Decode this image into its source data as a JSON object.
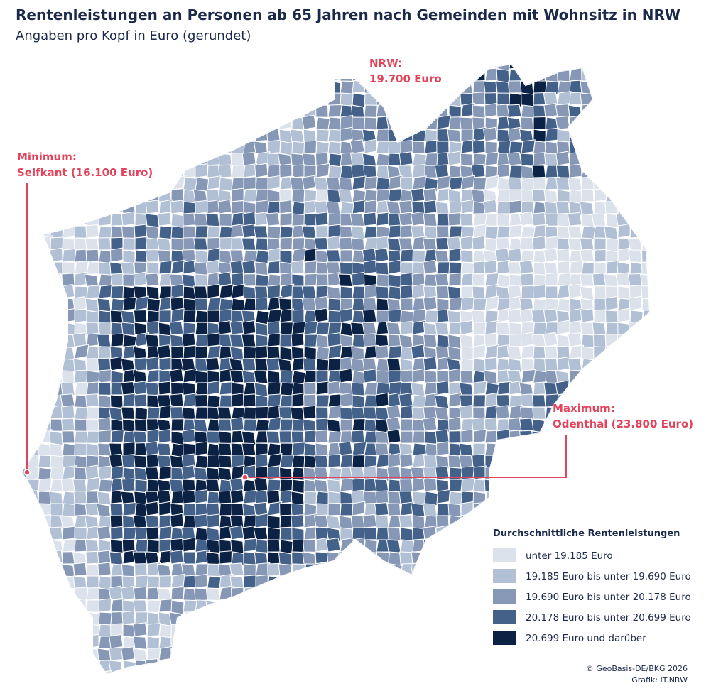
{
  "header": {
    "title": "Rentenleistungen an Personen ab 65 Jahren nach Gemeinden mit Wohnsitz in NRW",
    "subtitle": "Angaben pro Kopf in Euro (gerundet)"
  },
  "annotations": [
    {
      "lines": [
        "NRW:",
        "19.700 Euro"
      ]
    },
    {
      "lines": [
        "Minimum:",
        "Selfkant (16.100 Euro)"
      ]
    },
    {
      "lines": [
        "Maximum:",
        "Odenthal (23.800 Euro)"
      ]
    }
  ],
  "legend": {
    "title": "Durchschnittliche Rentenleistungen",
    "items": [
      {
        "label": "unter 19.185 Euro",
        "color": "#dce2eb"
      },
      {
        "label": "19.185 Euro bis unter 19.690 Euro",
        "color": "#b1c0d4"
      },
      {
        "label": "19.690 Euro bis unter 20.178 Euro",
        "color": "#8698b5"
      },
      {
        "label": "20.178 Euro bis unter 20.699 Euro",
        "color": "#44618a"
      },
      {
        "label": "20.699 Euro und darüber",
        "color": "#0b2245"
      }
    ]
  },
  "credits": [
    "© GeoBasis-DE/BKG 2026",
    "Grafik: IT.NRW"
  ]
}
